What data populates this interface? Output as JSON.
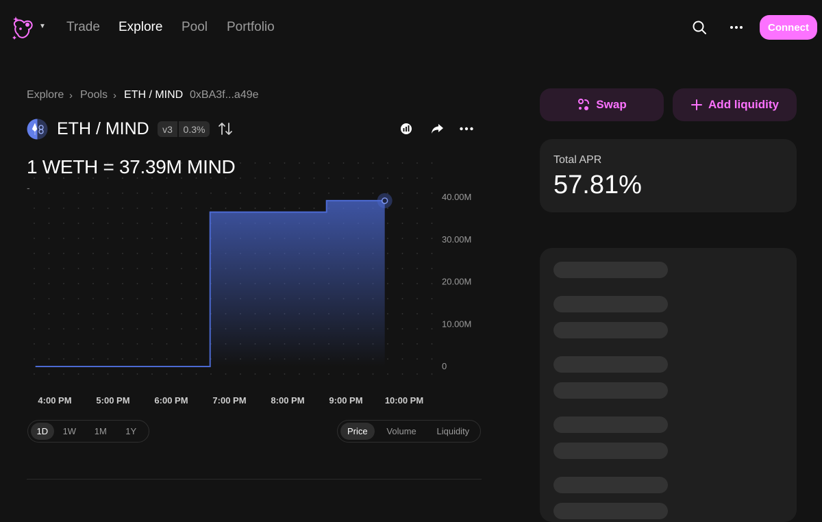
{
  "nav": {
    "links": [
      "Trade",
      "Explore",
      "Pool",
      "Portfolio"
    ],
    "active": "Explore",
    "connect_label": "Connect",
    "accent": "#fc72ff"
  },
  "breadcrumb": {
    "items": [
      "Explore",
      "Pools",
      "ETH / MIND"
    ],
    "address": "0xBA3f...a49e"
  },
  "pair": {
    "title": "ETH / MIND",
    "version": "v3",
    "fee": "0.3%"
  },
  "price": {
    "line": "1 WETH = 37.39M MIND",
    "sub": "-"
  },
  "chart_data": {
    "type": "line",
    "y_tick_labels": [
      "40.00M",
      "30.00M",
      "20.00M",
      "10.00M",
      "0"
    ],
    "y_tick_values": [
      40000000,
      30000000,
      20000000,
      10000000,
      0
    ],
    "x_tick_labels": [
      "4:00 PM",
      "5:00 PM",
      "6:00 PM",
      "7:00 PM",
      "8:00 PM",
      "9:00 PM",
      "10:00 PM"
    ],
    "x": [
      "15:40",
      "18:40",
      "18:40",
      "20:40",
      "20:40",
      "21:40"
    ],
    "series": [
      {
        "values": [
          0,
          0,
          36500000,
          36500000,
          39200000,
          39200000
        ]
      }
    ],
    "ylim": [
      0,
      40000000
    ],
    "line_color": "#4c6ad3",
    "grid": "dotted"
  },
  "time_ranges": {
    "options": [
      "1D",
      "1W",
      "1M",
      "1Y"
    ],
    "selected": "1D"
  },
  "chart_modes": {
    "options": [
      "Price",
      "Volume",
      "Liquidity"
    ],
    "selected": "Price"
  },
  "actions": {
    "swap_label": "Swap",
    "add_liquidity_label": "Add liquidity"
  },
  "apr": {
    "label": "Total APR",
    "value": "57.81%"
  }
}
